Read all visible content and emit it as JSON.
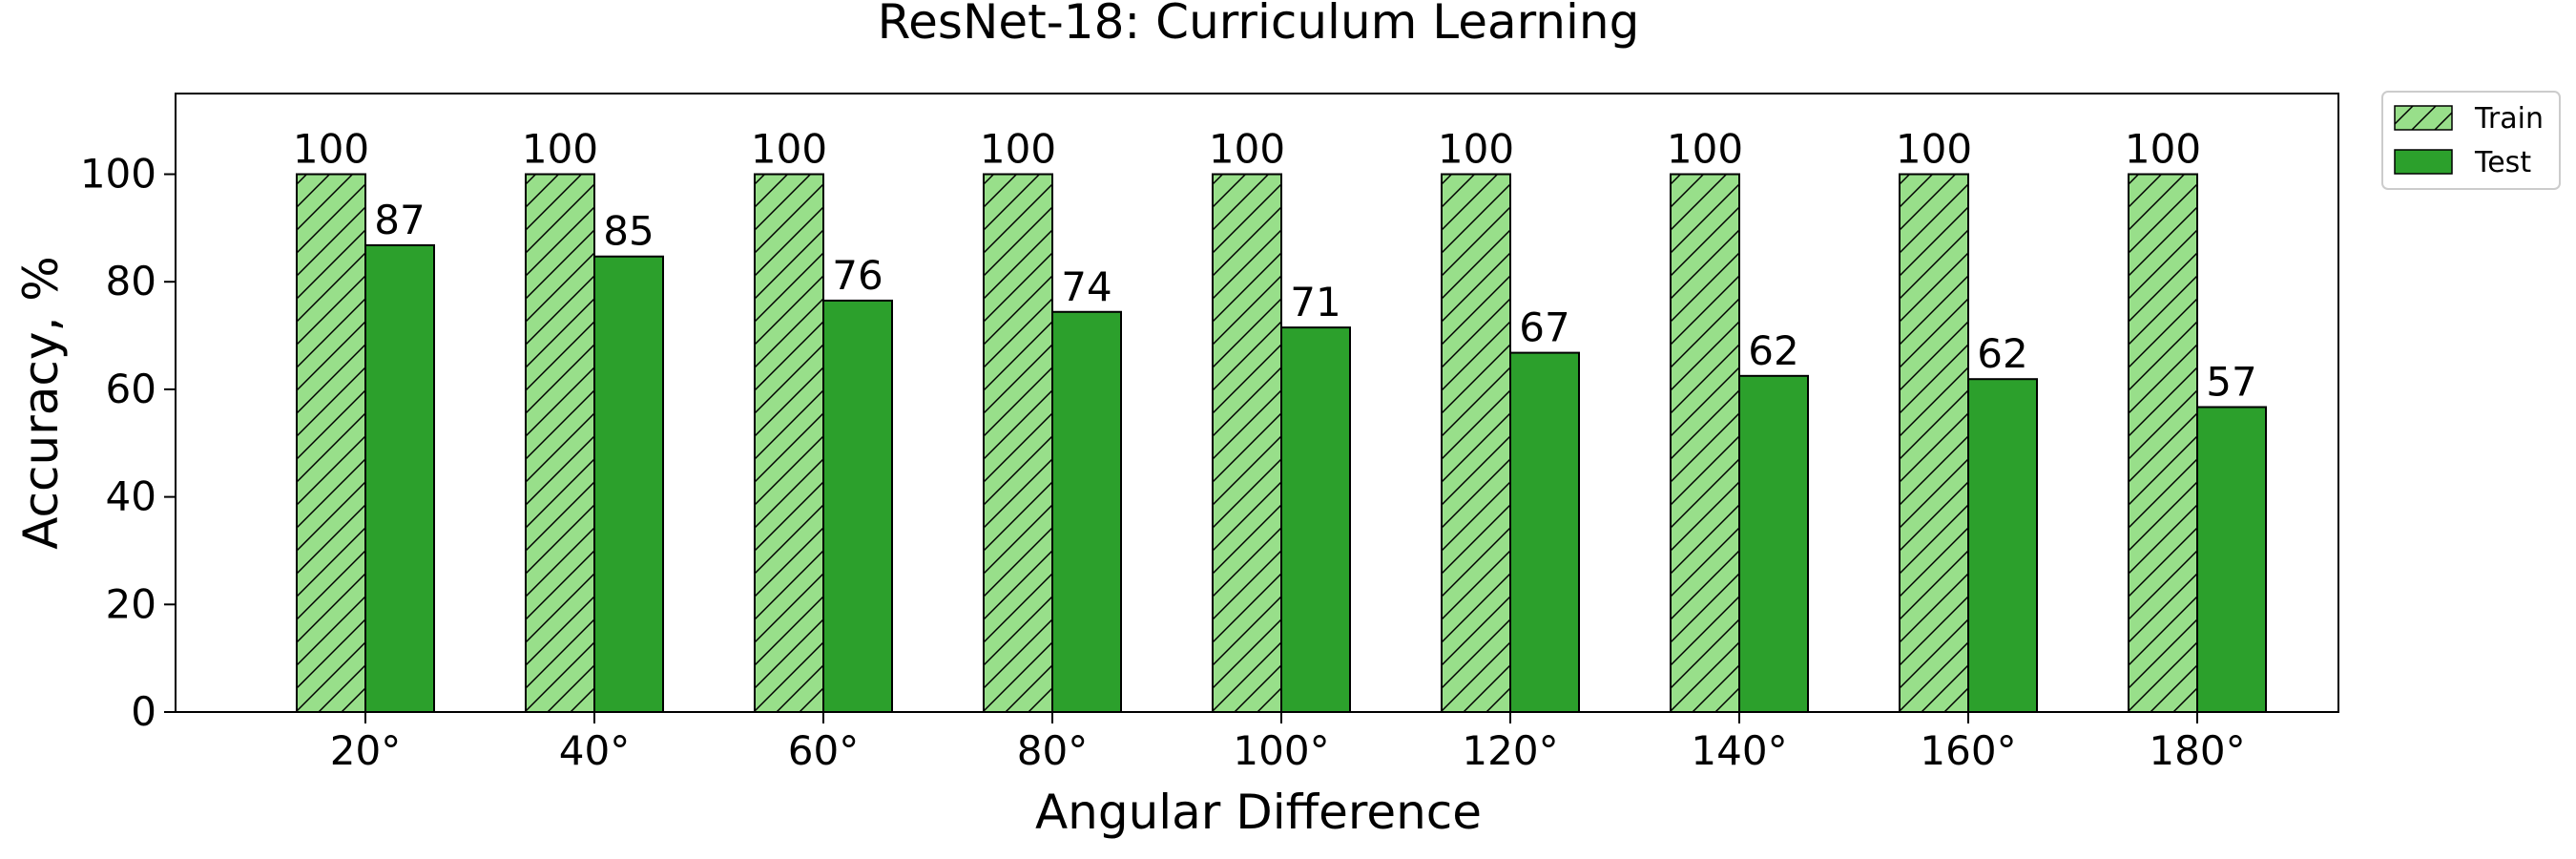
{
  "chart_data": {
    "type": "bar",
    "title": "ResNet-18: Curriculum Learning",
    "xlabel": "Angular Difference",
    "ylabel": "Accuracy, %",
    "categories": [
      "20°",
      "40°",
      "60°",
      "80°",
      "100°",
      "120°",
      "140°",
      "160°",
      "180°"
    ],
    "series": [
      {
        "name": "Train",
        "values": [
          100,
          100,
          100,
          100,
          100,
          100,
          100,
          100,
          100
        ],
        "data_labels": [
          "100",
          "100",
          "100",
          "100",
          "100",
          "100",
          "100",
          "100",
          "100"
        ],
        "color": "#98df8a",
        "hatch": "diagonal"
      },
      {
        "name": "Test",
        "values": [
          86.8,
          84.7,
          76.5,
          74.4,
          71.5,
          66.8,
          62.5,
          61.9,
          56.7
        ],
        "data_labels": [
          "87",
          "85",
          "76",
          "74",
          "71",
          "67",
          "62",
          "62",
          "57"
        ],
        "color": "#2ca02c",
        "hatch": "none"
      }
    ],
    "ylim": [
      0,
      115
    ],
    "yticks": [
      0,
      20,
      40,
      60,
      80,
      100
    ],
    "grid": false,
    "legend_position": "outside-top-right"
  }
}
